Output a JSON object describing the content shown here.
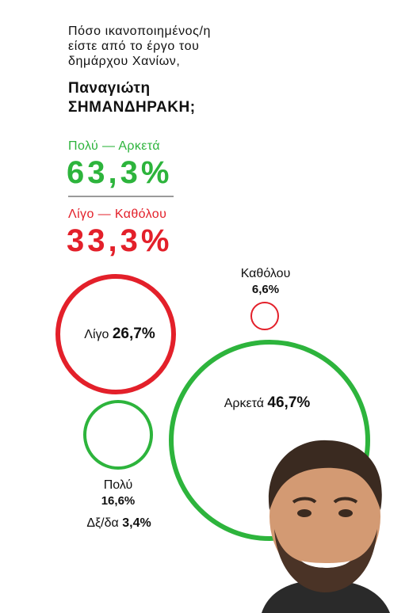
{
  "question": {
    "lines": [
      "Πόσο ικανοποιημένος/η",
      "είστε από το έργο του",
      "δημάρχου Χανίων,"
    ],
    "name_lines": [
      "Παναγιώτη",
      "ΣΗΜΑΝΔΗΡΑΚΗ;"
    ]
  },
  "summary": {
    "positive": {
      "label": "Πολύ — Αρκετά",
      "value": "63,3%"
    },
    "negative": {
      "label": "Λίγο — Καθόλου",
      "value": "33,3%"
    }
  },
  "colors": {
    "green": "#2db43c",
    "red": "#e3202a",
    "divider": "#9a9a9a"
  },
  "chart_data": {
    "type": "bubble",
    "title": "Πόσο ικανοποιημένος/η είστε από το έργο του δημάρχου Χανίων, Παναγιώτη ΣΗΜΑΝΔΗΡΑΚΗ;",
    "unit": "%",
    "categories": [
      "Αρκετά",
      "Λίγο",
      "Πολύ",
      "Καθόλου",
      "Δξ/δα"
    ],
    "values": [
      46.7,
      26.7,
      16.6,
      6.6,
      3.4
    ],
    "labels": [
      "46,7%",
      "26,7%",
      "16,6%",
      "6,6%",
      "3,4%"
    ],
    "colors": [
      "#2db43c",
      "#e3202a",
      "#2db43c",
      "#e3202a",
      null
    ]
  },
  "icons": {
    "portrait": "man-portrait-icon"
  }
}
